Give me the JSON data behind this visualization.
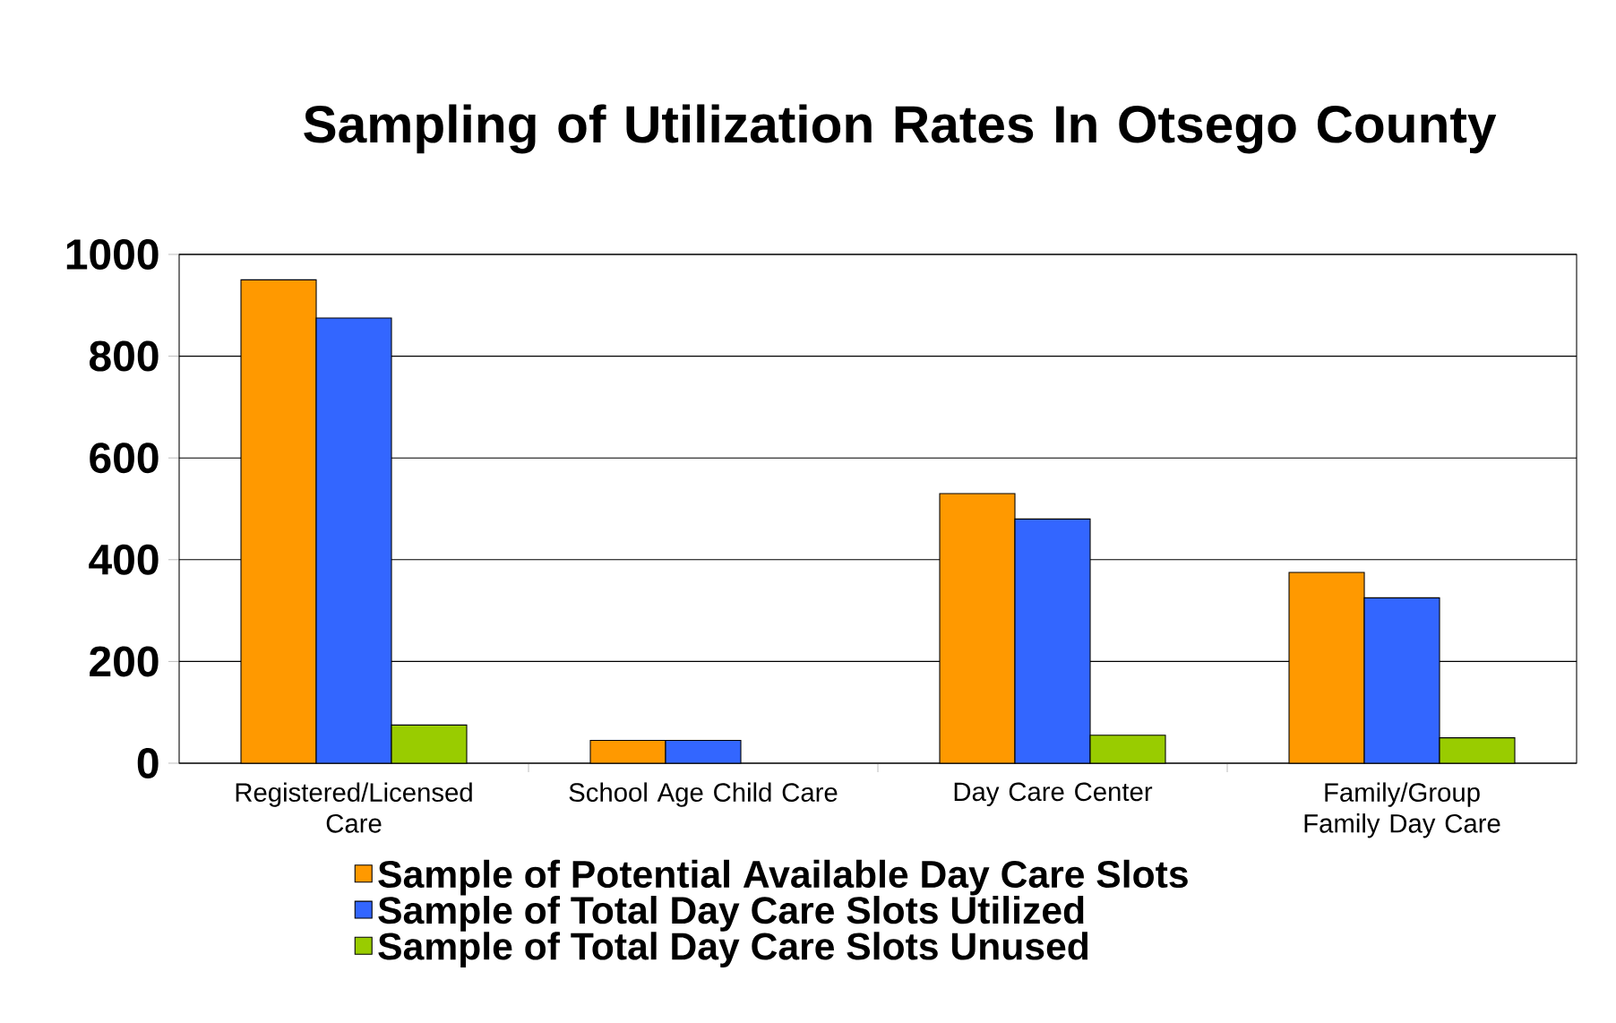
{
  "chart_data": {
    "type": "bar",
    "title": "Sampling of Utilization Rates In Otsego County",
    "categories": [
      "Registered/Licensed Care",
      "School Age Child Care",
      "Day Care Center",
      "Family/Group Family Day Care"
    ],
    "series": [
      {
        "name": "Sample of Potential Available Day Care Slots",
        "color": "#ff9900",
        "values": [
          950,
          45,
          530,
          375
        ]
      },
      {
        "name": "Sample of Total Day Care Slots Utilized",
        "color": "#3366ff",
        "values": [
          875,
          45,
          480,
          325
        ]
      },
      {
        "name": "Sample of Total Day Care Slots Unused",
        "color": "#99cc00",
        "values": [
          75,
          null,
          55,
          50
        ]
      }
    ],
    "ylim": [
      0,
      1000
    ],
    "yticks": [
      0,
      200,
      400,
      600,
      800,
      1000
    ],
    "grid": "y",
    "legend": "bottom"
  }
}
